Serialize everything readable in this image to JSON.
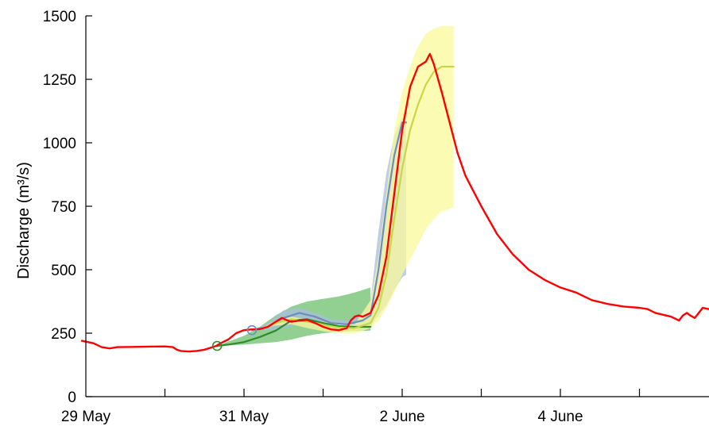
{
  "chart_data": {
    "type": "line",
    "title": "",
    "xlabel": "",
    "ylabel": "Discharge (m³/s)",
    "x_unit": "days",
    "xlim": [
      0,
      7.87
    ],
    "ylim": [
      0,
      1500
    ],
    "x_ticks": [
      {
        "x": 0,
        "label": "29 May"
      },
      {
        "x": 1,
        "label": ""
      },
      {
        "x": 2,
        "label": "31 May"
      },
      {
        "x": 3,
        "label": ""
      },
      {
        "x": 4,
        "label": "2 June"
      },
      {
        "x": 5,
        "label": ""
      },
      {
        "x": 6,
        "label": "4 June"
      },
      {
        "x": 7,
        "label": ""
      }
    ],
    "y_ticks": [
      0,
      250,
      500,
      750,
      1000,
      1250,
      1500
    ],
    "grid": false,
    "series": [
      {
        "name": "",
        "style": "observed",
        "color": "#ff0000",
        "points": [
          [
            -0.05,
            220
          ],
          [
            0.1,
            210
          ],
          [
            0.2,
            195
          ],
          [
            0.3,
            190
          ],
          [
            0.4,
            195
          ],
          [
            0.6,
            196
          ],
          [
            0.8,
            197
          ],
          [
            1.0,
            198
          ],
          [
            1.1,
            195
          ],
          [
            1.15,
            185
          ],
          [
            1.2,
            180
          ],
          [
            1.3,
            178
          ],
          [
            1.4,
            180
          ],
          [
            1.5,
            185
          ],
          [
            1.6,
            195
          ],
          [
            1.65,
            200
          ],
          [
            1.7,
            210
          ],
          [
            1.8,
            225
          ],
          [
            1.9,
            250
          ],
          [
            2.0,
            262
          ],
          [
            2.1,
            265
          ],
          [
            2.2,
            266
          ],
          [
            2.3,
            275
          ],
          [
            2.4,
            295
          ],
          [
            2.48,
            310
          ],
          [
            2.55,
            300
          ],
          [
            2.6,
            295
          ],
          [
            2.7,
            300
          ],
          [
            2.8,
            302
          ],
          [
            2.9,
            290
          ],
          [
            3.0,
            275
          ],
          [
            3.1,
            265
          ],
          [
            3.2,
            262
          ],
          [
            3.3,
            270
          ],
          [
            3.35,
            300
          ],
          [
            3.4,
            315
          ],
          [
            3.45,
            320
          ],
          [
            3.5,
            315
          ],
          [
            3.6,
            330
          ],
          [
            3.7,
            400
          ],
          [
            3.8,
            550
          ],
          [
            3.9,
            800
          ],
          [
            4.0,
            1050
          ],
          [
            4.1,
            1220
          ],
          [
            4.2,
            1300
          ],
          [
            4.3,
            1320
          ],
          [
            4.35,
            1350
          ],
          [
            4.4,
            1310
          ],
          [
            4.5,
            1200
          ],
          [
            4.6,
            1080
          ],
          [
            4.7,
            960
          ],
          [
            4.8,
            870
          ],
          [
            4.9,
            810
          ],
          [
            5.0,
            750
          ],
          [
            5.2,
            640
          ],
          [
            5.4,
            560
          ],
          [
            5.6,
            500
          ],
          [
            5.8,
            460
          ],
          [
            6.0,
            430
          ],
          [
            6.2,
            410
          ],
          [
            6.4,
            380
          ],
          [
            6.6,
            365
          ],
          [
            6.8,
            355
          ],
          [
            7.0,
            350
          ],
          [
            7.1,
            345
          ],
          [
            7.2,
            330
          ],
          [
            7.4,
            315
          ],
          [
            7.5,
            300
          ],
          [
            7.55,
            320
          ],
          [
            7.6,
            330
          ],
          [
            7.65,
            318
          ],
          [
            7.7,
            310
          ],
          [
            7.75,
            330
          ],
          [
            7.8,
            350
          ],
          [
            7.87,
            345
          ]
        ]
      },
      {
        "name": "",
        "style": "forecast-line",
        "color": "#2e8b2e",
        "points": [
          [
            1.66,
            200
          ],
          [
            1.8,
            205
          ],
          [
            2.0,
            215
          ],
          [
            2.2,
            235
          ],
          [
            2.4,
            260
          ],
          [
            2.6,
            300
          ],
          [
            2.8,
            305
          ],
          [
            3.0,
            290
          ],
          [
            3.2,
            278
          ],
          [
            3.4,
            275
          ],
          [
            3.6,
            275
          ]
        ]
      },
      {
        "name": "",
        "style": "forecast-band",
        "color": "#6cc06c",
        "band": [
          [
            1.66,
            200,
            200
          ],
          [
            2.0,
            240,
            205
          ],
          [
            2.2,
            275,
            210
          ],
          [
            2.4,
            320,
            215
          ],
          [
            2.6,
            355,
            225
          ],
          [
            2.8,
            375,
            240
          ],
          [
            3.0,
            385,
            250
          ],
          [
            3.2,
            395,
            255
          ],
          [
            3.4,
            410,
            258
          ],
          [
            3.6,
            430,
            260
          ]
        ]
      },
      {
        "name": "",
        "style": "forecast-line",
        "color": "#6c8ebf",
        "points": [
          [
            2.1,
            262
          ],
          [
            2.3,
            275
          ],
          [
            2.5,
            310
          ],
          [
            2.7,
            330
          ],
          [
            2.9,
            315
          ],
          [
            3.1,
            290
          ],
          [
            3.3,
            285
          ],
          [
            3.5,
            300
          ],
          [
            3.6,
            320
          ],
          [
            3.7,
            500
          ],
          [
            3.8,
            750
          ],
          [
            3.9,
            950
          ],
          [
            4.0,
            1080
          ],
          [
            4.05,
            1080
          ]
        ]
      },
      {
        "name": "",
        "style": "forecast-band",
        "color": "#a9bedc",
        "band": [
          [
            2.1,
            262,
            262
          ],
          [
            2.3,
            290,
            262
          ],
          [
            2.5,
            340,
            270
          ],
          [
            2.7,
            350,
            285
          ],
          [
            2.9,
            330,
            275
          ],
          [
            3.1,
            305,
            265
          ],
          [
            3.3,
            300,
            265
          ],
          [
            3.5,
            330,
            270
          ],
          [
            3.6,
            380,
            275
          ],
          [
            3.7,
            650,
            320
          ],
          [
            3.8,
            880,
            360
          ],
          [
            3.9,
            1030,
            420
          ],
          [
            4.0,
            1100,
            470
          ],
          [
            4.05,
            1110,
            480
          ]
        ]
      },
      {
        "name": "",
        "style": "forecast-line",
        "color": "#c9d64a",
        "points": [
          [
            2.2,
            266
          ],
          [
            2.4,
            290
          ],
          [
            2.6,
            305
          ],
          [
            2.8,
            295
          ],
          [
            3.0,
            282
          ],
          [
            3.2,
            272
          ],
          [
            3.4,
            270
          ],
          [
            3.6,
            290
          ],
          [
            3.7,
            350
          ],
          [
            3.8,
            480
          ],
          [
            3.9,
            700
          ],
          [
            4.0,
            900
          ],
          [
            4.1,
            1050
          ],
          [
            4.2,
            1150
          ],
          [
            4.3,
            1230
          ],
          [
            4.4,
            1280
          ],
          [
            4.5,
            1300
          ],
          [
            4.6,
            1300
          ],
          [
            4.65,
            1300
          ]
        ]
      },
      {
        "name": "",
        "style": "forecast-band",
        "color": "#fafa9a",
        "band": [
          [
            2.2,
            266,
            266
          ],
          [
            2.4,
            300,
            280
          ],
          [
            2.6,
            315,
            285
          ],
          [
            2.8,
            305,
            270
          ],
          [
            3.0,
            295,
            258
          ],
          [
            3.2,
            285,
            250
          ],
          [
            3.4,
            285,
            248
          ],
          [
            3.6,
            380,
            270
          ],
          [
            3.7,
            550,
            300
          ],
          [
            3.8,
            800,
            350
          ],
          [
            3.9,
            1050,
            410
          ],
          [
            4.0,
            1200,
            480
          ],
          [
            4.1,
            1300,
            540
          ],
          [
            4.2,
            1380,
            600
          ],
          [
            4.3,
            1430,
            660
          ],
          [
            4.4,
            1450,
            700
          ],
          [
            4.5,
            1460,
            730
          ],
          [
            4.6,
            1460,
            740
          ],
          [
            4.65,
            1460,
            745
          ]
        ]
      }
    ],
    "markers": [
      {
        "x": 1.66,
        "y": 200,
        "color": "#2e8b2e"
      },
      {
        "x": 2.1,
        "y": 262,
        "color": "#6c8ebf"
      }
    ]
  }
}
